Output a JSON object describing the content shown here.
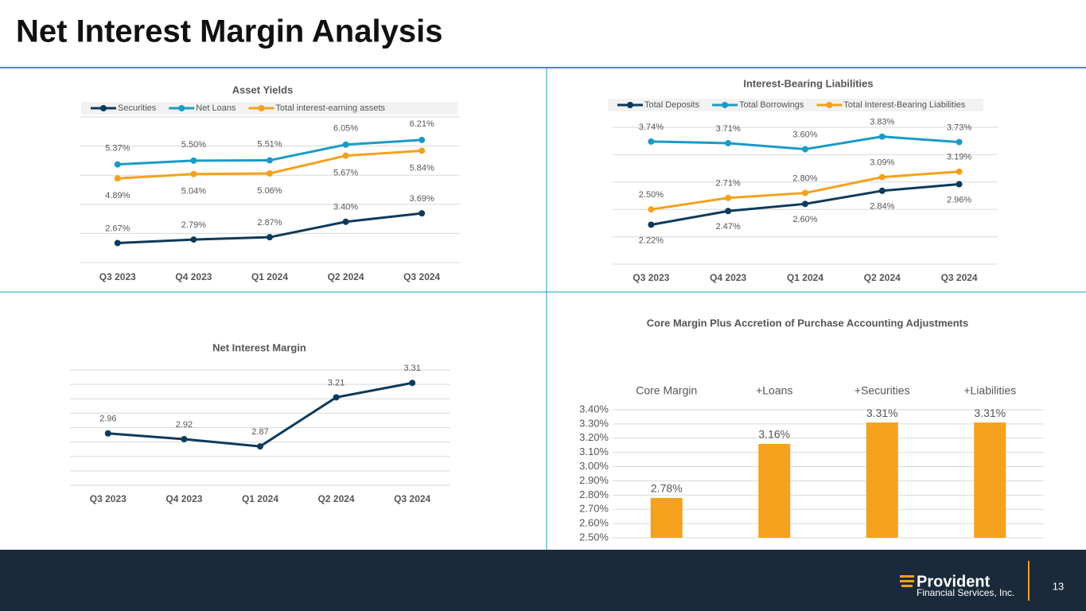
{
  "title": "Net Interest Margin Analysis",
  "page_number": "13",
  "logo": {
    "name": "Provident",
    "subtitle": "Financial Services, Inc."
  },
  "chart_data": [
    {
      "type": "line",
      "title": "Asset Yields",
      "categories": [
        "Q3 2023",
        "Q4 2023",
        "Q1 2024",
        "Q2 2024",
        "Q3 2024"
      ],
      "series": [
        {
          "name": "Securities",
          "color": "#0d3a5c",
          "values": [
            2.67,
            2.79,
            2.87,
            3.4,
            3.69
          ],
          "value_labels": [
            "2.67%",
            "2.79%",
            "2.87%",
            "3.40%",
            "3.69%"
          ]
        },
        {
          "name": "Net Loans",
          "color": "#1a9bc7",
          "values": [
            5.37,
            5.5,
            5.51,
            6.05,
            6.21
          ],
          "value_labels": [
            "5.37%",
            "5.50%",
            "5.51%",
            "6.05%",
            "6.21%"
          ]
        },
        {
          "name": "Total interest-earning assets",
          "color": "#f4a11d",
          "values": [
            4.89,
            5.04,
            5.06,
            5.67,
            5.84
          ],
          "value_labels": [
            "4.89%",
            "5.04%",
            "5.06%",
            "5.67%",
            "5.84%"
          ]
        }
      ],
      "ylim": [
        2,
        7
      ],
      "yticks": [
        2,
        3,
        4,
        5,
        6,
        7
      ],
      "ytick_labels": false,
      "grid": true,
      "legend": "top"
    },
    {
      "type": "line",
      "title": "Interest-Bearing Liabilities",
      "categories": [
        "Q3 2023",
        "Q4 2023",
        "Q1 2024",
        "Q2 2024",
        "Q3 2024"
      ],
      "series": [
        {
          "name": "Total Deposits",
          "color": "#0d3a5c",
          "values": [
            2.22,
            2.47,
            2.6,
            2.84,
            2.96
          ],
          "value_labels": [
            "2.22%",
            "2.47%",
            "2.60%",
            "2.84%",
            "2.96%"
          ]
        },
        {
          "name": "Total Borrowings",
          "color": "#1a9bc7",
          "values": [
            3.74,
            3.71,
            3.6,
            3.83,
            3.73
          ],
          "value_labels": [
            "3.74%",
            "3.71%",
            "3.60%",
            "3.83%",
            "3.73%"
          ]
        },
        {
          "name": "Total Interest-Bearing Liabilities",
          "color": "#f4a11d",
          "values": [
            2.5,
            2.71,
            2.8,
            3.09,
            3.19
          ],
          "value_labels": [
            "2.50%",
            "2.71%",
            "2.80%",
            "3.09%",
            "3.19%"
          ]
        }
      ],
      "ylim": [
        1.5,
        4.0
      ],
      "yticks": [
        1.5,
        2,
        2.5,
        3,
        3.5,
        4
      ],
      "ytick_labels": false,
      "grid": true,
      "legend": "top"
    },
    {
      "type": "line",
      "title": "Net Interest Margin",
      "categories": [
        "Q3 2023",
        "Q4 2023",
        "Q1 2024",
        "Q2 2024",
        "Q3 2024"
      ],
      "series": [
        {
          "name": "Net Interest Margin",
          "color": "#0d3a5c",
          "values": [
            2.96,
            2.92,
            2.87,
            3.21,
            3.31
          ]
        }
      ],
      "ylim": [
        2.6,
        3.4
      ],
      "yticks": [
        2.6,
        2.7,
        2.8,
        2.9,
        3.0,
        3.1,
        3.2,
        3.3,
        3.4
      ],
      "ytick_labels": false,
      "grid": true,
      "legend": "none"
    },
    {
      "type": "bar",
      "title": "Core Margin Plus Accretion of Purchase Accounting Adjustments",
      "categories": [
        "Core Margin",
        "+Loans",
        "+Securities",
        "+Liabilities"
      ],
      "values": [
        2.78,
        3.16,
        3.31,
        3.31
      ],
      "value_labels": [
        "2.78%",
        "3.16%",
        "3.31%",
        "3.31%"
      ],
      "color": "#f4a11d",
      "ylim": [
        2.5,
        3.4
      ],
      "yticks": [
        {
          "value": 2.5,
          "label": "2.50%"
        },
        {
          "value": 2.6,
          "label": "2.60%"
        },
        {
          "value": 2.7,
          "label": "2.70%"
        },
        {
          "value": 2.8,
          "label": "2.80%"
        },
        {
          "value": 2.9,
          "label": "2.90%"
        },
        {
          "value": 3.0,
          "label": "3.00%"
        },
        {
          "value": 3.1,
          "label": "3.10%"
        },
        {
          "value": 3.2,
          "label": "3.20%"
        },
        {
          "value": 3.3,
          "label": "3.30%"
        },
        {
          "value": 3.4,
          "label": "3.40%"
        }
      ],
      "ytick_labels": true,
      "grid": true
    }
  ]
}
